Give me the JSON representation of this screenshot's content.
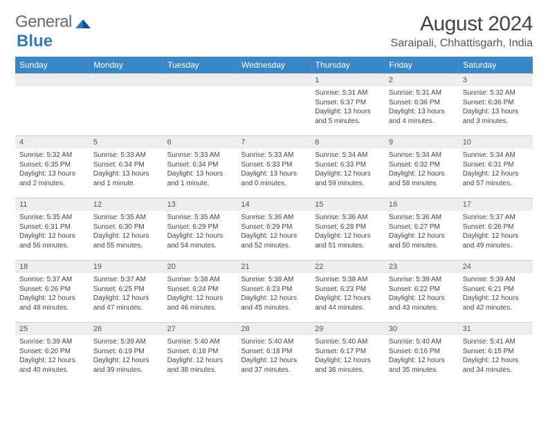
{
  "brand": {
    "part1": "General",
    "part2": "Blue"
  },
  "title": "August 2024",
  "location": "Saraipali, Chhattisgarh, India",
  "colors": {
    "header_bg": "#3a87c8",
    "header_text": "#ffffff",
    "daynum_bg": "#eeeeee",
    "body_text": "#444444",
    "logo_gray": "#6a6a6a",
    "logo_blue": "#2f7bbf",
    "grid_line": "#cfcfcf"
  },
  "weekdays": [
    "Sunday",
    "Monday",
    "Tuesday",
    "Wednesday",
    "Thursday",
    "Friday",
    "Saturday"
  ],
  "weeks": [
    [
      {
        "n": "",
        "sunrise": "",
        "sunset": "",
        "daylight": ""
      },
      {
        "n": "",
        "sunrise": "",
        "sunset": "",
        "daylight": ""
      },
      {
        "n": "",
        "sunrise": "",
        "sunset": "",
        "daylight": ""
      },
      {
        "n": "",
        "sunrise": "",
        "sunset": "",
        "daylight": ""
      },
      {
        "n": "1",
        "sunrise": "Sunrise: 5:31 AM",
        "sunset": "Sunset: 6:37 PM",
        "daylight": "Daylight: 13 hours and 5 minutes."
      },
      {
        "n": "2",
        "sunrise": "Sunrise: 5:31 AM",
        "sunset": "Sunset: 6:36 PM",
        "daylight": "Daylight: 13 hours and 4 minutes."
      },
      {
        "n": "3",
        "sunrise": "Sunrise: 5:32 AM",
        "sunset": "Sunset: 6:36 PM",
        "daylight": "Daylight: 13 hours and 3 minutes."
      }
    ],
    [
      {
        "n": "4",
        "sunrise": "Sunrise: 5:32 AM",
        "sunset": "Sunset: 6:35 PM",
        "daylight": "Daylight: 13 hours and 2 minutes."
      },
      {
        "n": "5",
        "sunrise": "Sunrise: 5:33 AM",
        "sunset": "Sunset: 6:34 PM",
        "daylight": "Daylight: 13 hours and 1 minute."
      },
      {
        "n": "6",
        "sunrise": "Sunrise: 5:33 AM",
        "sunset": "Sunset: 6:34 PM",
        "daylight": "Daylight: 13 hours and 1 minute."
      },
      {
        "n": "7",
        "sunrise": "Sunrise: 5:33 AM",
        "sunset": "Sunset: 6:33 PM",
        "daylight": "Daylight: 13 hours and 0 minutes."
      },
      {
        "n": "8",
        "sunrise": "Sunrise: 5:34 AM",
        "sunset": "Sunset: 6:33 PM",
        "daylight": "Daylight: 12 hours and 59 minutes."
      },
      {
        "n": "9",
        "sunrise": "Sunrise: 5:34 AM",
        "sunset": "Sunset: 6:32 PM",
        "daylight": "Daylight: 12 hours and 58 minutes."
      },
      {
        "n": "10",
        "sunrise": "Sunrise: 5:34 AM",
        "sunset": "Sunset: 6:31 PM",
        "daylight": "Daylight: 12 hours and 57 minutes."
      }
    ],
    [
      {
        "n": "11",
        "sunrise": "Sunrise: 5:35 AM",
        "sunset": "Sunset: 6:31 PM",
        "daylight": "Daylight: 12 hours and 56 minutes."
      },
      {
        "n": "12",
        "sunrise": "Sunrise: 5:35 AM",
        "sunset": "Sunset: 6:30 PM",
        "daylight": "Daylight: 12 hours and 55 minutes."
      },
      {
        "n": "13",
        "sunrise": "Sunrise: 5:35 AM",
        "sunset": "Sunset: 6:29 PM",
        "daylight": "Daylight: 12 hours and 54 minutes."
      },
      {
        "n": "14",
        "sunrise": "Sunrise: 5:36 AM",
        "sunset": "Sunset: 6:29 PM",
        "daylight": "Daylight: 12 hours and 52 minutes."
      },
      {
        "n": "15",
        "sunrise": "Sunrise: 5:36 AM",
        "sunset": "Sunset: 6:28 PM",
        "daylight": "Daylight: 12 hours and 51 minutes."
      },
      {
        "n": "16",
        "sunrise": "Sunrise: 5:36 AM",
        "sunset": "Sunset: 6:27 PM",
        "daylight": "Daylight: 12 hours and 50 minutes."
      },
      {
        "n": "17",
        "sunrise": "Sunrise: 5:37 AM",
        "sunset": "Sunset: 6:26 PM",
        "daylight": "Daylight: 12 hours and 49 minutes."
      }
    ],
    [
      {
        "n": "18",
        "sunrise": "Sunrise: 5:37 AM",
        "sunset": "Sunset: 6:26 PM",
        "daylight": "Daylight: 12 hours and 48 minutes."
      },
      {
        "n": "19",
        "sunrise": "Sunrise: 5:37 AM",
        "sunset": "Sunset: 6:25 PM",
        "daylight": "Daylight: 12 hours and 47 minutes."
      },
      {
        "n": "20",
        "sunrise": "Sunrise: 5:38 AM",
        "sunset": "Sunset: 6:24 PM",
        "daylight": "Daylight: 12 hours and 46 minutes."
      },
      {
        "n": "21",
        "sunrise": "Sunrise: 5:38 AM",
        "sunset": "Sunset: 6:23 PM",
        "daylight": "Daylight: 12 hours and 45 minutes."
      },
      {
        "n": "22",
        "sunrise": "Sunrise: 5:38 AM",
        "sunset": "Sunset: 6:23 PM",
        "daylight": "Daylight: 12 hours and 44 minutes."
      },
      {
        "n": "23",
        "sunrise": "Sunrise: 5:39 AM",
        "sunset": "Sunset: 6:22 PM",
        "daylight": "Daylight: 12 hours and 43 minutes."
      },
      {
        "n": "24",
        "sunrise": "Sunrise: 5:39 AM",
        "sunset": "Sunset: 6:21 PM",
        "daylight": "Daylight: 12 hours and 42 minutes."
      }
    ],
    [
      {
        "n": "25",
        "sunrise": "Sunrise: 5:39 AM",
        "sunset": "Sunset: 6:20 PM",
        "daylight": "Daylight: 12 hours and 40 minutes."
      },
      {
        "n": "26",
        "sunrise": "Sunrise: 5:39 AM",
        "sunset": "Sunset: 6:19 PM",
        "daylight": "Daylight: 12 hours and 39 minutes."
      },
      {
        "n": "27",
        "sunrise": "Sunrise: 5:40 AM",
        "sunset": "Sunset: 6:18 PM",
        "daylight": "Daylight: 12 hours and 38 minutes."
      },
      {
        "n": "28",
        "sunrise": "Sunrise: 5:40 AM",
        "sunset": "Sunset: 6:18 PM",
        "daylight": "Daylight: 12 hours and 37 minutes."
      },
      {
        "n": "29",
        "sunrise": "Sunrise: 5:40 AM",
        "sunset": "Sunset: 6:17 PM",
        "daylight": "Daylight: 12 hours and 36 minutes."
      },
      {
        "n": "30",
        "sunrise": "Sunrise: 5:40 AM",
        "sunset": "Sunset: 6:16 PM",
        "daylight": "Daylight: 12 hours and 35 minutes."
      },
      {
        "n": "31",
        "sunrise": "Sunrise: 5:41 AM",
        "sunset": "Sunset: 6:15 PM",
        "daylight": "Daylight: 12 hours and 34 minutes."
      }
    ]
  ]
}
